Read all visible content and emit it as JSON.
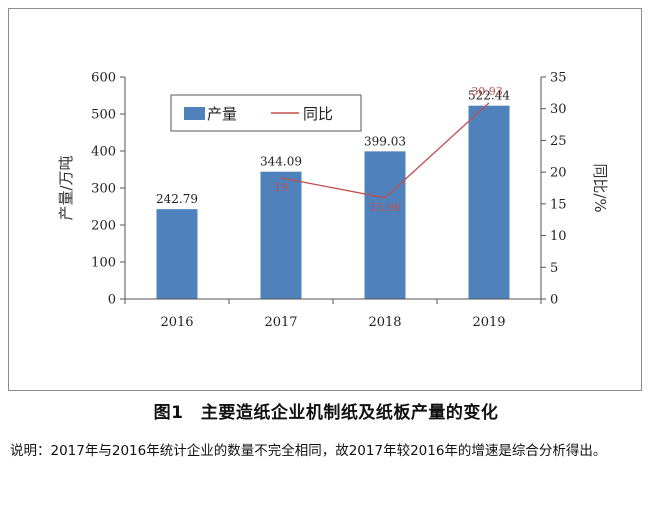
{
  "figure": {
    "title": "图1　主要造纸企业机制纸及纸板产量的变化",
    "note": "说明：2017年与2016年统计企业的数量不完全相同，故2017年较2016年的增速是综合分析得出。"
  },
  "chart_data": {
    "type": "bar+line",
    "categories": [
      "2016",
      "2017",
      "2018",
      "2019"
    ],
    "series": [
      {
        "name": "产量",
        "type": "bar",
        "axis": "left",
        "values": [
          242.79,
          344.09,
          399.03,
          522.44
        ],
        "labels": [
          "242.79",
          "344.09",
          "399.03",
          "522.44"
        ],
        "color": "#4f81bd"
      },
      {
        "name": "同比",
        "type": "line",
        "axis": "right",
        "values": [
          null,
          19.1,
          15.96,
          30.93
        ],
        "labels": [
          "",
          "19",
          "15.96",
          "30.93"
        ],
        "color": "#c0504d"
      }
    ],
    "ylabel": "产量/万吨",
    "y2label": "同比/%",
    "ylim": [
      0,
      600
    ],
    "yticks": [
      0,
      100,
      200,
      300,
      400,
      500,
      600
    ],
    "y2lim": [
      0,
      35
    ],
    "y2ticks": [
      0,
      5,
      10,
      15,
      20,
      25,
      30,
      35
    ],
    "legend": "top-left",
    "grid": false
  }
}
